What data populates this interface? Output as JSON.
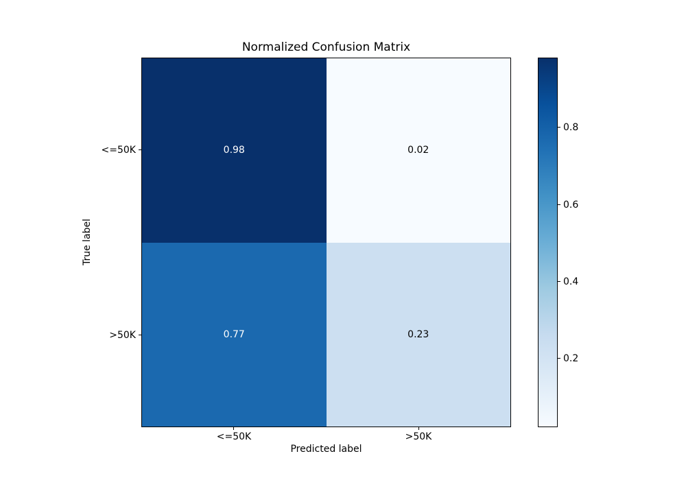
{
  "chart_data": {
    "type": "heatmap",
    "title": "Normalized Confusion Matrix",
    "xlabel": "Predicted label",
    "ylabel": "True label",
    "x_tick_labels": [
      "<=50K",
      ">50K"
    ],
    "y_tick_labels": [
      "<=50K",
      ">50K"
    ],
    "rows": [
      {
        "true_label": "<=50K",
        "values": [
          0.98,
          0.02
        ]
      },
      {
        "true_label": ">50K",
        "values": [
          0.77,
          0.23
        ]
      }
    ],
    "cells": [
      {
        "row": "<=50K",
        "col": "<=50K",
        "label": "0.98",
        "bg": "#08306b",
        "fg": "#ffffff",
        "style": "background:#08306b;color:#ffffff"
      },
      {
        "row": "<=50K",
        "col": ">50K",
        "label": "0.02",
        "bg": "#f7fbff",
        "fg": "#000000",
        "style": "background:#f7fbff;color:#000000"
      },
      {
        "row": ">50K",
        "col": "<=50K",
        "label": "0.77",
        "bg": "#1b69af",
        "fg": "#ffffff",
        "style": "background:#1b69af;color:#ffffff"
      },
      {
        "row": ">50K",
        "col": ">50K",
        "label": "0.23",
        "bg": "#ccdff1",
        "fg": "#000000",
        "style": "background:#ccdff1;color:#000000"
      }
    ],
    "colormap": "Blues",
    "vmin": 0.02,
    "vmax": 0.98,
    "grid": false,
    "legend_position": "right-colorbar",
    "colorbar": {
      "ticks": [
        "0.8",
        "0.6",
        "0.4",
        "0.2"
      ],
      "gradient_stops": [
        "#08306b",
        "#08519c",
        "#2171b5",
        "#4292c6",
        "#6baed6",
        "#9ecae1",
        "#c6dbef",
        "#deebf7",
        "#f7fbff"
      ]
    }
  }
}
